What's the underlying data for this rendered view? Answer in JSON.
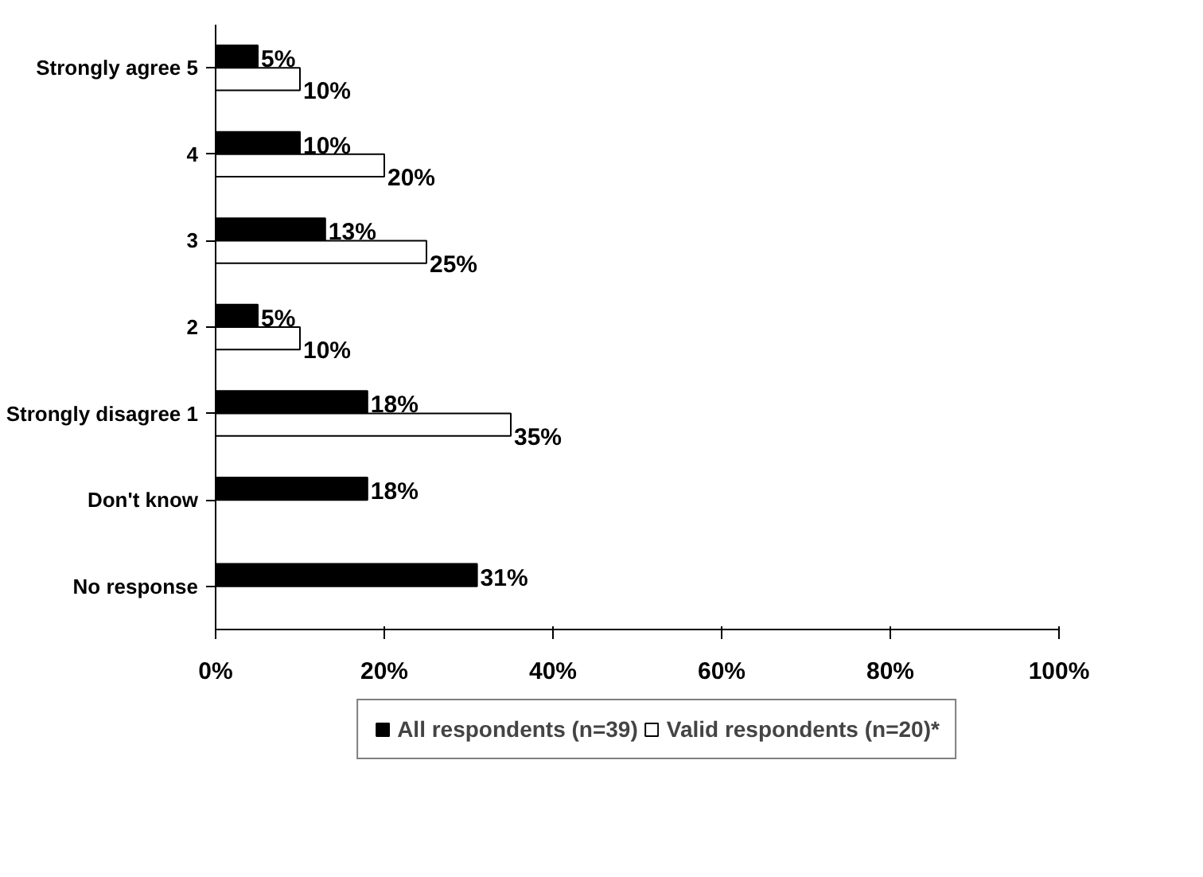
{
  "chart_data": {
    "type": "bar",
    "orientation": "horizontal",
    "categories": [
      "Strongly agree 5",
      "4",
      "3",
      "2",
      "Strongly disagree 1",
      "Don't know",
      "No response"
    ],
    "series": [
      {
        "name": "All respondents (n=39)",
        "color": "#000000",
        "values": [
          5,
          10,
          13,
          5,
          18,
          18,
          31
        ],
        "value_labels": [
          "5%",
          "10%",
          "13%",
          "5%",
          "18%",
          "18%",
          "31%"
        ]
      },
      {
        "name": "Valid respondents (n=20)*",
        "color": "#ffffff",
        "values": [
          10,
          20,
          25,
          10,
          35,
          null,
          null
        ],
        "value_labels": [
          "10%",
          "20%",
          "25%",
          "10%",
          "35%",
          null,
          null
        ]
      }
    ],
    "xlim": [
      0,
      100
    ],
    "xticks": [
      {
        "value": 0,
        "label": "0%"
      },
      {
        "value": 20,
        "label": "20%"
      },
      {
        "value": 40,
        "label": "40%"
      },
      {
        "value": 60,
        "label": "60%"
      },
      {
        "value": 80,
        "label": "80%"
      },
      {
        "value": 100,
        "label": "100%"
      }
    ],
    "grid": false,
    "legend": "bottom"
  }
}
